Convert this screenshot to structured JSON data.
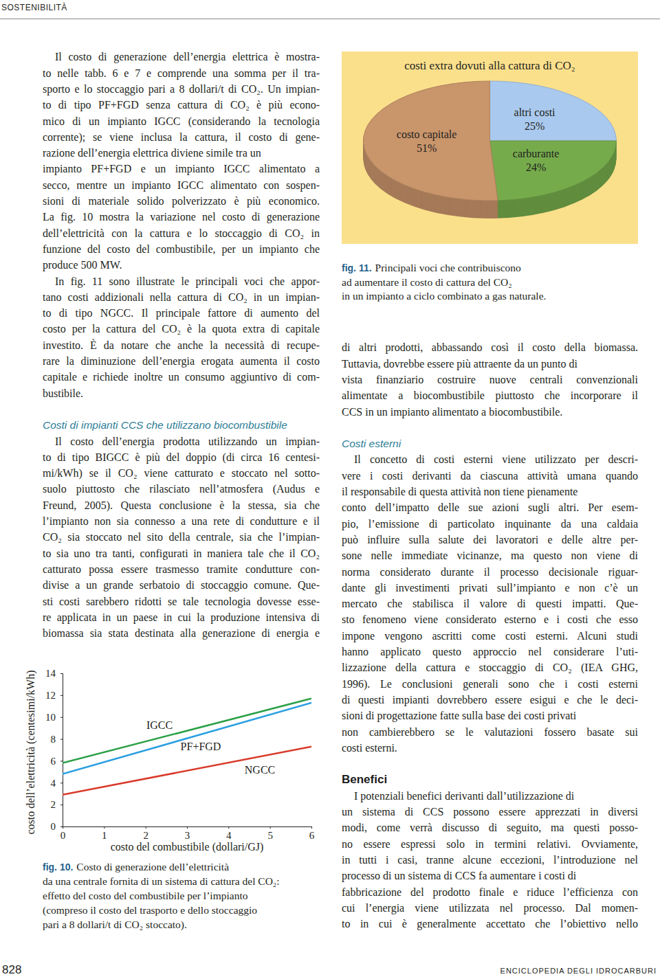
{
  "header": {
    "section": "SOSTENIBILITÀ"
  },
  "left_column": {
    "paragraphs": [
      [
        "Il costo di generazione dell’energia elettrica è mostra-",
        "to nelle tabb. 6 e 7 e comprende una somma per il tra-",
        "sporto e lo stoccaggio pari a 8 dollari/t di CO₂. Un impian-",
        "to di tipo PF+FGD senza cattura di CO₂ è più econo-",
        "mico di un impianto IGCC (considerando la tecnologia",
        "corrente); se viene inclusa la cattura, il costo di gene-",
        "razione dell’energia elettrica diviene simile tra un",
        "impianto PF+FGD e un impianto IGCC alimentato a",
        "secco, mentre un impianto IGCC alimentato con sospen-",
        "sioni di materiale solido polverizzato è più economico.",
        "La fig. 10 mostra la variazione nel costo di generazione",
        "dell’elettricità con la cattura e lo stoccaggio di CO₂ in",
        "funzione del costo del combustibile, per un impianto che",
        "produce 500 MW."
      ],
      [
        "In fig. 11 sono illustrate le principali voci che appor-",
        "tano costi addizionali nella cattura di CO₂ in un impian-",
        "to di tipo NGCC. Il principale fattore di aumento del",
        "costo per la cattura del CO₂ è la quota extra di capitale",
        "investito. È da notare che anche la necessità di recupe-",
        "rare la diminuzione dell’energia erogata aumenta il costo",
        "capitale e richiede inoltre un consumo aggiuntivo di com-",
        "bustibile."
      ]
    ],
    "sections": [
      {
        "subheading": "Costi di impianti CCS che utilizzano biocombustibile",
        "paragraphs": [
          [
            "Il costo dell’energia prodotta utilizzando un impian-",
            "to di tipo BIGCC è più del doppio (di circa 16 centesi-",
            "mi/kWh) se il CO₂ viene catturato e stoccato nel sotto-",
            "suolo piuttosto che rilasciato nell’atmosfera (Audus e",
            "Freund, 2005). Questa conclusione è la stessa, sia che",
            "l’impianto non sia connesso a una rete di condutture e il",
            "CO₂ sia stoccato nel sito della centrale, sia che l’impian-",
            "to sia uno tra tanti, configurati in maniera tale che il CO₂",
            "catturato possa essere trasmesso tramite condutture con-",
            "divise a un grande serbatoio di stoccaggio comune. Que-",
            "sti costi sarebbero ridotti se tale tecnologia dovesse esse-",
            "re applicata in un paese in cui la produzione intensiva di",
            "biomassa sia stata destinata alla generazione di energia e"
          ]
        ]
      }
    ]
  },
  "right_column": {
    "continuation": [
      "di altri prodotti, abbassando così il costo della biomassa.",
      "Tuttavia, dovrebbe essere più attraente da un punto di",
      "vista finanziario costruire nuove centrali convenzionali",
      "alimentate a biocombustibile piuttosto che incorporare il",
      "CCS in un impianto alimentato a biocombustibile."
    ],
    "sections": [
      {
        "subheading": "Costi esterni",
        "paragraphs": [
          [
            "Il concetto di costi esterni viene utilizzato per descri-",
            "vere i costi derivanti da ciascuna attività umana quando",
            "il responsabile di questa attività non tiene pienamente",
            "conto dell’impatto delle sue azioni sugli altri. Per esem-",
            "pio, l’emissione di particolato inquinante da una caldaia",
            "può influire sulla salute dei lavoratori e delle altre per-",
            "sone nelle immediate vicinanze, ma questo non viene di",
            "norma considerato durante il processo decisionale riguar-",
            "dante gli investimenti privati sull’impianto e non c’è un",
            "mercato che stabilisca il valore di questi impatti. Que-",
            "sto fenomeno viene considerato esterno e i costi che esso",
            "impone vengono ascritti come costi esterni. Alcuni studi",
            "hanno applicato questo approccio nel considerare l’uti-",
            "lizzazione della cattura e stoccaggio di CO₂ (IEA GHG,",
            "1996). Le conclusioni generali sono che i costi esterni",
            "di questi impianti dovrebbero essere esigui e che le deci-",
            "sioni di progettazione fatte sulla base dei costi privati",
            "non cambierebbero se le valutazioni fossero basate sui",
            "costi esterni."
          ]
        ]
      },
      {
        "heading": "Benefici",
        "paragraphs": [
          [
            "I potenziali benefici derivanti dall’utilizzazione di",
            "un sistema di CCS possono essere apprezzati in diversi",
            "modi, come verrà discusso di seguito, ma questi posso-",
            "no essere espressi solo in termini relativi. Ovviamente,",
            "in tutti i casi, tranne alcune eccezioni, l’introduzione nel",
            "processo di un sistema di CCS fa aumentare i costi di",
            "fabbricazione del prodotto finale e riduce l’efficienza con",
            "cui l’energia viene utilizzata nel processo. Dal momen-",
            "to in cui è generalmente accettato che l’obiettivo nello"
          ]
        ]
      }
    ]
  },
  "chart_data": [
    {
      "type": "line",
      "x": [
        0,
        6
      ],
      "series": [
        {
          "name": "IGCC",
          "color": "#2ca048",
          "values": [
            5.8,
            11.7
          ]
        },
        {
          "name": "PF+FGD",
          "color": "#2b9fe0",
          "values": [
            4.8,
            11.3
          ]
        },
        {
          "name": "NGCC",
          "color": "#d93a2b",
          "values": [
            2.9,
            7.3
          ]
        }
      ],
      "x_label": "costo del combustibile (dollari/GJ)",
      "y_label": "costo dell’elettricità (centesimi/kWh)",
      "xlim": [
        0,
        6
      ],
      "ylim": [
        0,
        14
      ],
      "xticks": [
        0,
        1,
        2,
        3,
        4,
        5,
        6
      ],
      "yticks": [
        0,
        2,
        4,
        6,
        8,
        10,
        12,
        14
      ],
      "grid": false
    },
    {
      "type": "pie",
      "title": "costi extra dovuti alla cattura di CO₂",
      "categories": [
        "altri costi",
        "carburante",
        "costo capitale"
      ],
      "values": [
        25,
        24,
        51
      ],
      "value_labels": [
        "25%",
        "24%",
        "51%"
      ],
      "colors": [
        "#a9c9ee",
        "#76ab4c",
        "#c9956b"
      ],
      "data_labels": true
    }
  ],
  "captions": [
    {
      "label": "fig. 10.",
      "lines": [
        "Costo di generazione dell’elettricità",
        "da una centrale fornita di un sistema di cattura del CO₂:",
        "effetto del costo del combustibile per l’impianto",
        "(compreso il costo del trasporto e dello stoccaggio",
        "pari a 8 dollari/t di CO₂ stoccato)."
      ]
    },
    {
      "label": "fig. 11.",
      "lines": [
        "Principali voci che contribuiscono",
        "ad aumentare il costo di cattura del CO₂",
        "in un impianto a ciclo combinato a gas naturale."
      ]
    }
  ],
  "footer": {
    "page": "828",
    "publication": "ENCICLOPEDIA DEGLI IDROCARBURI"
  }
}
